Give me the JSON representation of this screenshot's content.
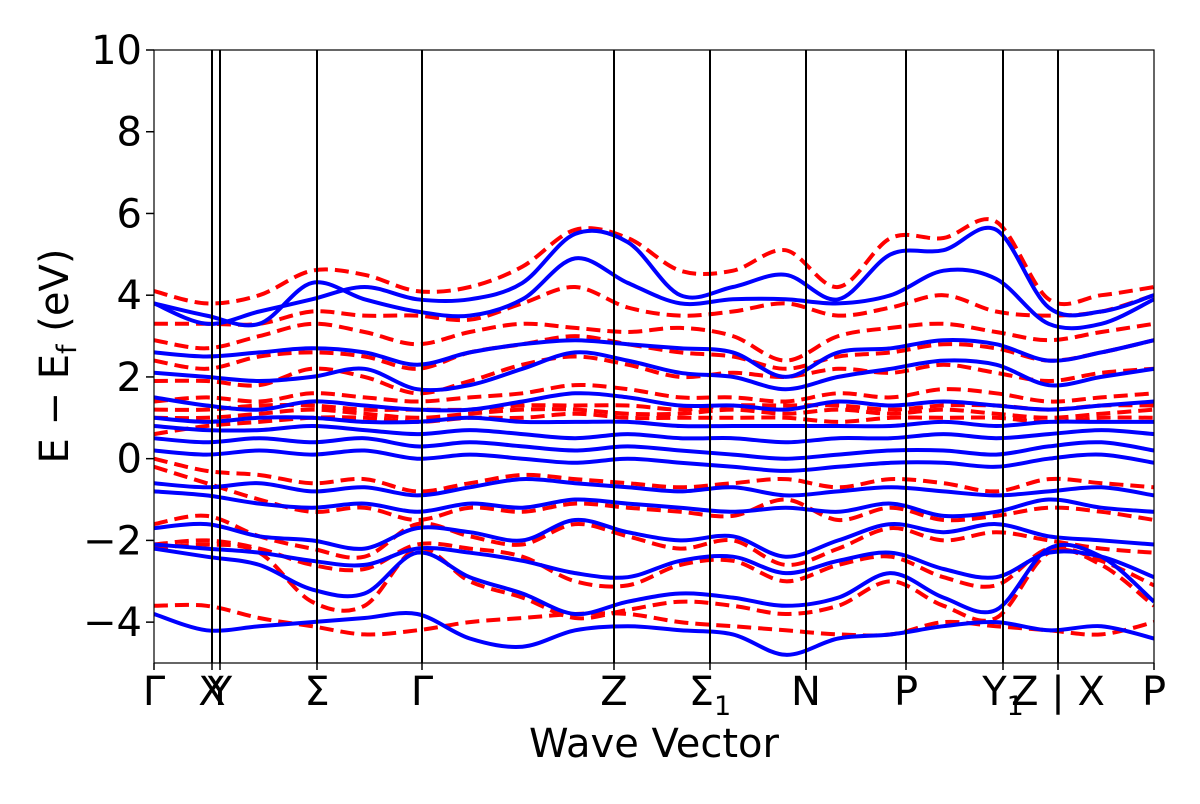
{
  "chart_data": {
    "type": "line",
    "title": "",
    "xlabel": "Wave Vector",
    "ylabel": "E − E_f (eV)",
    "ylabel_parts": {
      "main": "E − E",
      "sub": "f",
      "tail": " (eV)"
    },
    "ylim": [
      -5,
      10
    ],
    "xlim": [
      0,
      10
    ],
    "grid": false,
    "legend": "none",
    "yticks": [
      -4,
      -2,
      0,
      2,
      4,
      6,
      8,
      10
    ],
    "ytick_labels": [
      "−4",
      "−2",
      "0",
      "2",
      "4",
      "6",
      "8",
      "10"
    ],
    "kpoints": [
      {
        "label": "Γ",
        "x": 0.0
      },
      {
        "label": "X",
        "x": 0.58
      },
      {
        "label": "Y",
        "x": 0.66
      },
      {
        "label": "Σ",
        "x": 1.63
      },
      {
        "label": "Γ",
        "x": 2.68
      },
      {
        "label": "Z",
        "x": 4.6
      },
      {
        "label": "Σ",
        "sub": "1",
        "x": 5.56
      },
      {
        "label": "N",
        "x": 6.52
      },
      {
        "label": "P",
        "x": 7.52
      },
      {
        "label": "Y",
        "sub": "1",
        "x": 8.49
      },
      {
        "label": "Z | X",
        "x": 9.04
      },
      {
        "label": "P",
        "x": 10.0
      }
    ],
    "series": [
      {
        "name": "",
        "color": "#ff0000",
        "style": "dashed",
        "bands": [
          [
            -3.6,
            -3.6,
            -3.9,
            -4.1,
            -4.3,
            -4.2,
            -4.0,
            -3.9,
            -3.8,
            -3.8,
            -4.0,
            -4.1,
            -4.2,
            -4.3,
            -4.3,
            -4.0,
            -4.1,
            -4.2,
            -4.3,
            -4.0
          ],
          [
            -2.2,
            -2.1,
            -2.3,
            -3.5,
            -3.6,
            -2.2,
            -3.0,
            -3.4,
            -3.9,
            -3.7,
            -3.5,
            -3.6,
            -3.8,
            -3.6,
            -3.0,
            -3.6,
            -3.9,
            -2.3,
            -2.6,
            -3.6
          ],
          [
            -2.1,
            -2.0,
            -2.2,
            -2.6,
            -2.7,
            -2.1,
            -2.2,
            -2.4,
            -3.0,
            -3.1,
            -2.6,
            -2.5,
            -3.0,
            -2.6,
            -2.4,
            -2.9,
            -3.1,
            -2.2,
            -2.5,
            -3.1
          ],
          [
            -1.6,
            -1.4,
            -1.9,
            -2.2,
            -2.4,
            -1.6,
            -1.9,
            -2.1,
            -1.6,
            -1.9,
            -2.2,
            -2.0,
            -2.6,
            -2.2,
            -1.7,
            -2.0,
            -1.8,
            -2.0,
            -2.2,
            -2.3
          ],
          [
            -0.2,
            -0.6,
            -1.0,
            -1.3,
            -1.2,
            -1.5,
            -1.2,
            -1.3,
            -1.1,
            -1.2,
            -1.3,
            -1.4,
            -1.0,
            -1.5,
            -1.2,
            -1.5,
            -1.4,
            -1.2,
            -1.3,
            -1.5
          ],
          [
            0.0,
            -0.3,
            -0.4,
            -0.6,
            -0.5,
            -0.8,
            -0.6,
            -0.4,
            -0.5,
            -0.6,
            -0.7,
            -0.6,
            -0.5,
            -0.7,
            -0.5,
            -0.6,
            -0.8,
            -0.5,
            -0.6,
            -0.7
          ],
          [
            0.6,
            0.8,
            0.9,
            1.0,
            1.0,
            0.9,
            1.0,
            1.0,
            1.1,
            1.0,
            1.0,
            1.0,
            1.0,
            0.9,
            1.0,
            1.0,
            1.0,
            0.9,
            1.0,
            1.0
          ],
          [
            1.0,
            1.0,
            1.1,
            1.2,
            1.1,
            1.0,
            1.1,
            1.2,
            1.2,
            1.1,
            1.1,
            1.2,
            1.1,
            1.2,
            1.1,
            1.2,
            1.1,
            1.0,
            1.1,
            1.2
          ],
          [
            1.2,
            1.2,
            1.3,
            1.3,
            1.2,
            1.2,
            1.2,
            1.3,
            1.3,
            1.3,
            1.2,
            1.3,
            1.3,
            1.3,
            1.2,
            1.3,
            1.3,
            1.2,
            1.3,
            1.3
          ],
          [
            1.4,
            1.5,
            1.4,
            1.6,
            1.5,
            1.4,
            1.5,
            1.6,
            1.8,
            1.7,
            1.5,
            1.5,
            1.4,
            1.6,
            1.5,
            1.7,
            1.6,
            1.4,
            1.5,
            1.6
          ],
          [
            1.9,
            1.9,
            1.8,
            2.2,
            2.0,
            1.6,
            1.9,
            2.3,
            2.5,
            2.3,
            2.0,
            2.1,
            2.0,
            2.2,
            2.1,
            2.3,
            2.1,
            1.9,
            2.1,
            2.2
          ],
          [
            2.4,
            2.2,
            2.5,
            2.6,
            2.5,
            2.2,
            2.6,
            2.8,
            3.0,
            2.8,
            2.6,
            2.5,
            2.2,
            2.5,
            2.6,
            2.8,
            2.7,
            2.4,
            2.6,
            2.9
          ],
          [
            2.9,
            2.7,
            3.0,
            3.3,
            3.1,
            2.8,
            3.1,
            3.3,
            3.2,
            3.1,
            3.2,
            3.0,
            2.4,
            3.0,
            3.2,
            3.3,
            3.1,
            2.9,
            3.1,
            3.3
          ],
          [
            3.3,
            3.3,
            3.3,
            3.6,
            3.5,
            3.5,
            3.4,
            3.8,
            4.2,
            3.7,
            3.5,
            3.6,
            3.8,
            3.5,
            3.7,
            4.0,
            3.6,
            3.5,
            3.6,
            4.0
          ],
          [
            4.1,
            3.8,
            4.0,
            4.6,
            4.5,
            4.1,
            4.2,
            4.7,
            5.6,
            5.4,
            4.6,
            4.6,
            5.1,
            4.2,
            5.4,
            5.4,
            5.8,
            3.9,
            4.0,
            4.2
          ]
        ]
      },
      {
        "name": "",
        "color": "#0000ff",
        "style": "solid",
        "bands": [
          [
            -3.8,
            -4.2,
            -4.1,
            -4.0,
            -3.9,
            -3.8,
            -4.4,
            -4.6,
            -4.2,
            -4.1,
            -4.2,
            -4.3,
            -4.8,
            -4.4,
            -4.3,
            -4.1,
            -4.0,
            -4.2,
            -4.1,
            -4.4
          ],
          [
            -2.2,
            -2.4,
            -2.6,
            -3.2,
            -3.3,
            -2.3,
            -2.9,
            -3.3,
            -3.8,
            -3.5,
            -3.3,
            -3.4,
            -3.6,
            -3.4,
            -2.8,
            -3.4,
            -3.7,
            -2.2,
            -2.4,
            -3.5
          ],
          [
            -2.1,
            -2.2,
            -2.3,
            -2.5,
            -2.6,
            -2.2,
            -2.3,
            -2.5,
            -2.8,
            -2.9,
            -2.5,
            -2.4,
            -2.8,
            -2.5,
            -2.3,
            -2.7,
            -2.9,
            -2.3,
            -2.4,
            -2.9
          ],
          [
            -1.7,
            -1.6,
            -1.9,
            -2.0,
            -2.2,
            -1.7,
            -1.8,
            -2.0,
            -1.5,
            -1.8,
            -2.0,
            -1.9,
            -2.4,
            -2.0,
            -1.6,
            -1.8,
            -1.6,
            -1.9,
            -2.0,
            -2.1
          ],
          [
            -0.8,
            -0.9,
            -1.1,
            -1.2,
            -1.1,
            -1.3,
            -1.1,
            -1.2,
            -1.0,
            -1.1,
            -1.2,
            -1.3,
            -1.2,
            -1.3,
            -1.1,
            -1.4,
            -1.3,
            -1.0,
            -1.2,
            -1.3
          ],
          [
            -0.6,
            -0.7,
            -0.6,
            -0.8,
            -0.7,
            -0.9,
            -0.7,
            -0.5,
            -0.6,
            -0.7,
            -0.8,
            -0.7,
            -0.9,
            -0.8,
            -0.7,
            -0.8,
            -0.9,
            -0.8,
            -0.7,
            -0.9
          ],
          [
            0.2,
            0.1,
            0.2,
            0.1,
            0.2,
            0.0,
            0.1,
            0.0,
            -0.1,
            0.0,
            -0.1,
            -0.2,
            -0.3,
            -0.2,
            -0.1,
            -0.1,
            -0.2,
            0.0,
            0.1,
            -0.1
          ],
          [
            0.5,
            0.4,
            0.5,
            0.4,
            0.5,
            0.3,
            0.4,
            0.3,
            0.2,
            0.3,
            0.2,
            0.1,
            0.0,
            0.1,
            0.2,
            0.2,
            0.1,
            0.3,
            0.4,
            0.2
          ],
          [
            0.8,
            0.7,
            0.7,
            0.8,
            0.7,
            0.6,
            0.7,
            0.6,
            0.5,
            0.6,
            0.5,
            0.5,
            0.4,
            0.5,
            0.5,
            0.6,
            0.5,
            0.6,
            0.7,
            0.6
          ],
          [
            1.0,
            0.9,
            1.0,
            1.0,
            0.9,
            0.9,
            1.0,
            0.9,
            0.9,
            0.9,
            0.8,
            0.8,
            0.8,
            0.8,
            0.8,
            0.9,
            0.8,
            0.9,
            0.9,
            0.9
          ],
          [
            1.5,
            1.3,
            1.2,
            1.4,
            1.3,
            1.2,
            1.2,
            1.4,
            1.6,
            1.5,
            1.3,
            1.3,
            1.2,
            1.4,
            1.3,
            1.4,
            1.3,
            1.2,
            1.3,
            1.4
          ],
          [
            2.1,
            2.0,
            1.9,
            2.0,
            2.2,
            1.7,
            1.8,
            2.2,
            2.6,
            2.4,
            2.1,
            2.0,
            1.7,
            2.0,
            2.2,
            2.4,
            2.3,
            1.8,
            2.0,
            2.2
          ],
          [
            2.6,
            2.5,
            2.6,
            2.7,
            2.6,
            2.3,
            2.6,
            2.8,
            2.9,
            2.8,
            2.7,
            2.6,
            2.0,
            2.6,
            2.7,
            2.9,
            2.8,
            2.4,
            2.6,
            2.9
          ],
          [
            3.8,
            3.5,
            3.3,
            4.3,
            3.9,
            3.6,
            3.5,
            3.9,
            4.9,
            4.3,
            3.8,
            3.9,
            3.9,
            3.8,
            4.0,
            4.6,
            4.4,
            3.3,
            3.3,
            3.9
          ],
          [
            3.8,
            3.3,
            3.6,
            3.9,
            4.2,
            3.9,
            3.9,
            4.3,
            5.5,
            5.3,
            4.0,
            4.2,
            4.5,
            3.9,
            5.0,
            5.1,
            5.6,
            3.7,
            3.6,
            4.0
          ]
        ]
      }
    ]
  }
}
